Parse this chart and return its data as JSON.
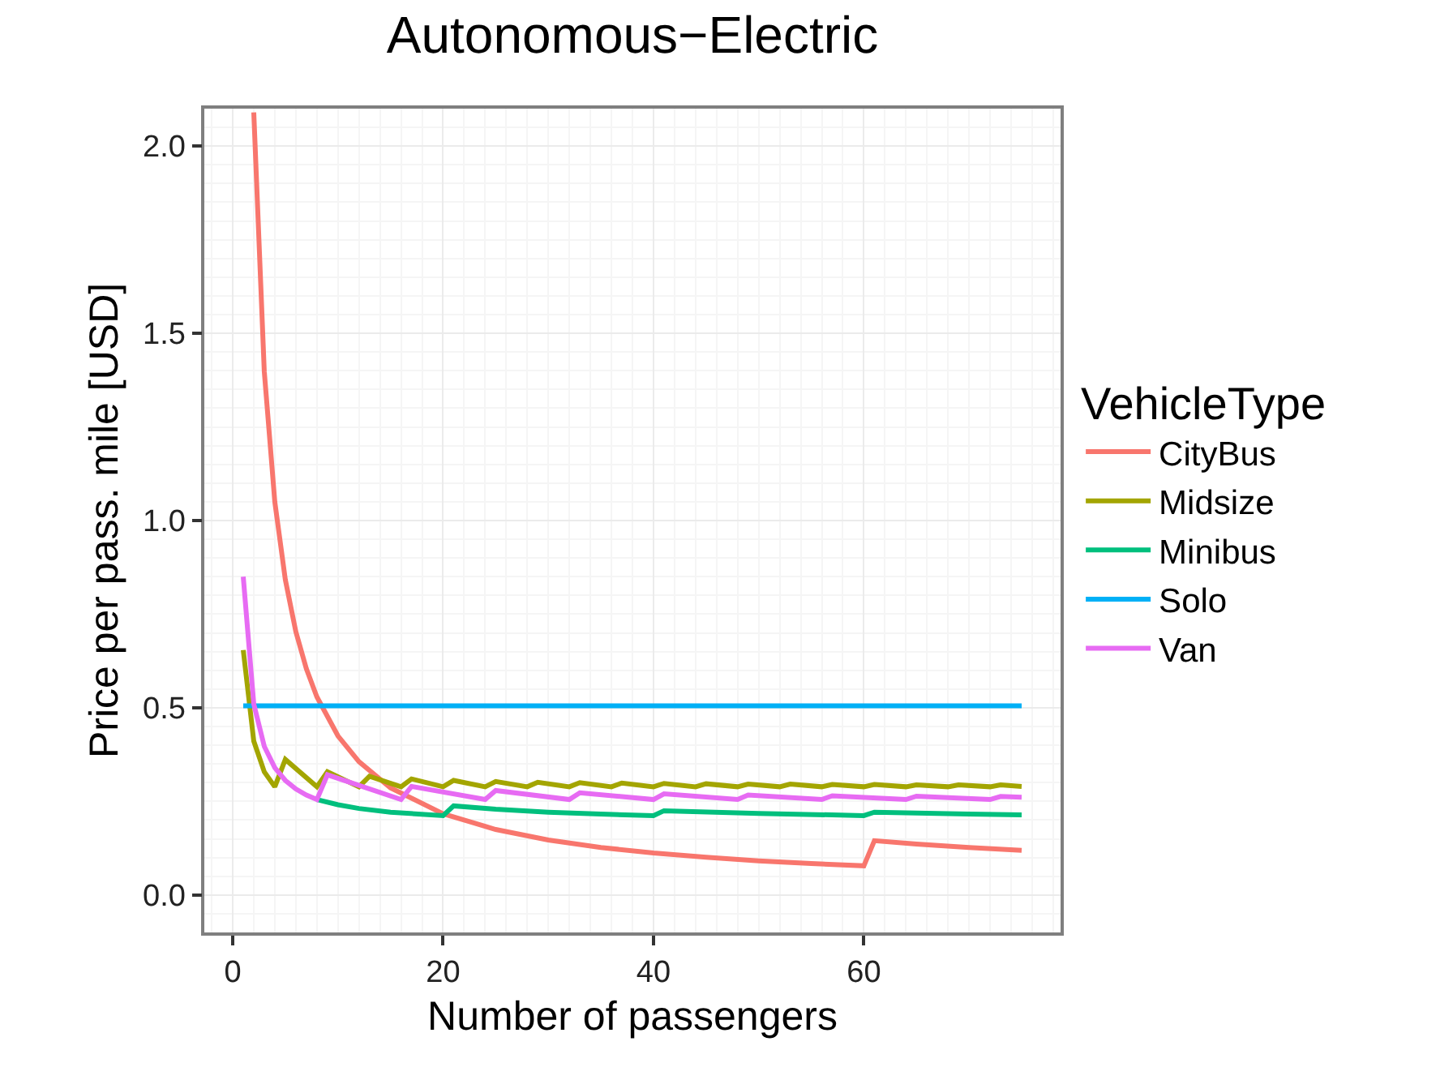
{
  "chart_data": {
    "type": "line",
    "title": "Autonomous−Electric",
    "xlabel": "Number of passengers",
    "ylabel": "Price per pass. mile [USD]",
    "legend_title": "VehicleType",
    "xlim": [
      -2.7,
      78.7
    ],
    "xticks": [
      0,
      20,
      40,
      60
    ],
    "ylim": [
      -0.1,
      2.1
    ],
    "yticks": [
      {
        "value": 0,
        "label": "0.0"
      },
      0.5,
      {
        "value": 1,
        "label": "1.0"
      },
      1.5,
      {
        "value": 2,
        "label": "2.0"
      }
    ],
    "grid": true,
    "legend": "right",
    "line_style": "solid",
    "marker": "none",
    "series": [
      {
        "name": "CityBus",
        "color": "#f8766d",
        "x": [
          2,
          3,
          4,
          5,
          6,
          7,
          8,
          10,
          12,
          15,
          20,
          25,
          30,
          35,
          40,
          45,
          50,
          55,
          60,
          61,
          65,
          70,
          75
        ],
        "values": [
          2.09,
          1.398,
          1.05,
          0.842,
          0.703,
          0.604,
          0.529,
          0.425,
          0.356,
          0.286,
          0.217,
          0.175,
          0.147,
          0.127,
          0.112,
          0.101,
          0.091,
          0.084,
          0.078,
          0.145,
          0.136,
          0.127,
          0.119
        ]
      },
      {
        "name": "Midsize",
        "color": "#a3a500",
        "x": [
          1,
          2,
          3,
          4,
          5,
          8,
          9,
          12,
          13,
          16,
          17,
          20,
          21,
          24,
          25,
          28,
          29,
          32,
          33,
          36,
          37,
          40,
          41,
          44,
          45,
          48,
          49,
          52,
          53,
          56,
          57,
          60,
          61,
          64,
          65,
          68,
          69,
          72,
          73,
          75
        ],
        "values": [
          0.654,
          0.411,
          0.329,
          0.289,
          0.362,
          0.289,
          0.329,
          0.289,
          0.317,
          0.289,
          0.31,
          0.289,
          0.306,
          0.289,
          0.303,
          0.289,
          0.301,
          0.289,
          0.3,
          0.289,
          0.299,
          0.289,
          0.298,
          0.289,
          0.297,
          0.289,
          0.296,
          0.289,
          0.296,
          0.289,
          0.295,
          0.289,
          0.295,
          0.289,
          0.294,
          0.289,
          0.294,
          0.289,
          0.294,
          0.29
        ]
      },
      {
        "name": "Minibus",
        "color": "#00bf7d",
        "x": [
          8,
          10,
          12,
          15,
          20,
          21,
          25,
          30,
          35,
          40,
          41,
          50,
          60,
          61,
          70,
          75
        ],
        "values": [
          0.255,
          0.241,
          0.231,
          0.221,
          0.212,
          0.238,
          0.229,
          0.221,
          0.216,
          0.212,
          0.225,
          0.218,
          0.212,
          0.221,
          0.216,
          0.214
        ]
      },
      {
        "name": "Solo",
        "color": "#00b0f6",
        "x": [
          1,
          75
        ],
        "values": [
          0.505,
          0.505
        ]
      },
      {
        "name": "Van",
        "color": "#e76bf3",
        "x": [
          1,
          2,
          3,
          4,
          5,
          6,
          7,
          8,
          9,
          16,
          17,
          24,
          25,
          32,
          33,
          40,
          41,
          48,
          49,
          56,
          57,
          64,
          65,
          72,
          73,
          75
        ],
        "values": [
          0.85,
          0.51,
          0.397,
          0.34,
          0.306,
          0.283,
          0.267,
          0.255,
          0.321,
          0.255,
          0.29,
          0.255,
          0.279,
          0.255,
          0.273,
          0.255,
          0.27,
          0.255,
          0.267,
          0.255,
          0.265,
          0.255,
          0.264,
          0.255,
          0.263,
          0.261
        ]
      }
    ]
  }
}
